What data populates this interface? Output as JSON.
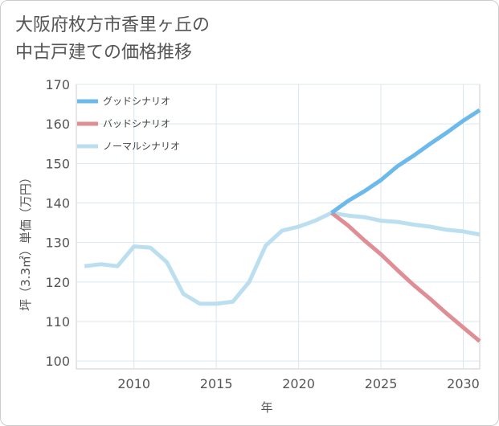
{
  "title_lines": [
    "大阪府枚方市香里ヶ丘の",
    "中古戸建ての価格推移"
  ],
  "chart_data": {
    "type": "line",
    "title": "大阪府枚方市香里ヶ丘の中古戸建ての価格推移",
    "xlabel": "年",
    "ylabel": "坪（3.3㎡）単価（万円）",
    "xlim": [
      2006.5,
      2031
    ],
    "ylim": [
      98,
      170
    ],
    "xticks": [
      2010,
      2015,
      2020,
      2025,
      2030
    ],
    "yticks": [
      100,
      110,
      120,
      130,
      140,
      150,
      160,
      170
    ],
    "grid": true,
    "legend_position": "top-left",
    "series": [
      {
        "name": "グッドシナリオ",
        "color": "#6cb9ec",
        "x": [
          2022,
          2023,
          2024,
          2025,
          2026,
          2027,
          2028,
          2029,
          2030,
          2031
        ],
        "y": [
          137.5,
          140.5,
          143,
          145.8,
          149.3,
          152,
          155,
          157.8,
          160.8,
          163.5
        ]
      },
      {
        "name": "バッドシナリオ",
        "color": "#de8e94",
        "x": [
          2022,
          2023,
          2024,
          2025,
          2026,
          2027,
          2028,
          2029,
          2030,
          2031
        ],
        "y": [
          137.5,
          134.3,
          130.5,
          127,
          123,
          119.2,
          115.7,
          112,
          108.5,
          105
        ]
      },
      {
        "name": "ノーマルシナリオ",
        "color": "#bcdff0",
        "x": [
          2007,
          2008,
          2009,
          2010,
          2011,
          2012,
          2013,
          2014,
          2015,
          2016,
          2017,
          2018,
          2019,
          2020,
          2021,
          2022,
          2023,
          2024,
          2025,
          2026,
          2027,
          2028,
          2029,
          2030,
          2031
        ],
        "y": [
          124,
          124.5,
          124,
          129,
          128.7,
          125,
          117,
          114.5,
          114.5,
          115,
          120,
          129.2,
          133,
          134,
          135.5,
          137.5,
          136.8,
          136.4,
          135.5,
          135.2,
          134.5,
          134,
          133.2,
          132.8,
          132
        ]
      }
    ]
  }
}
